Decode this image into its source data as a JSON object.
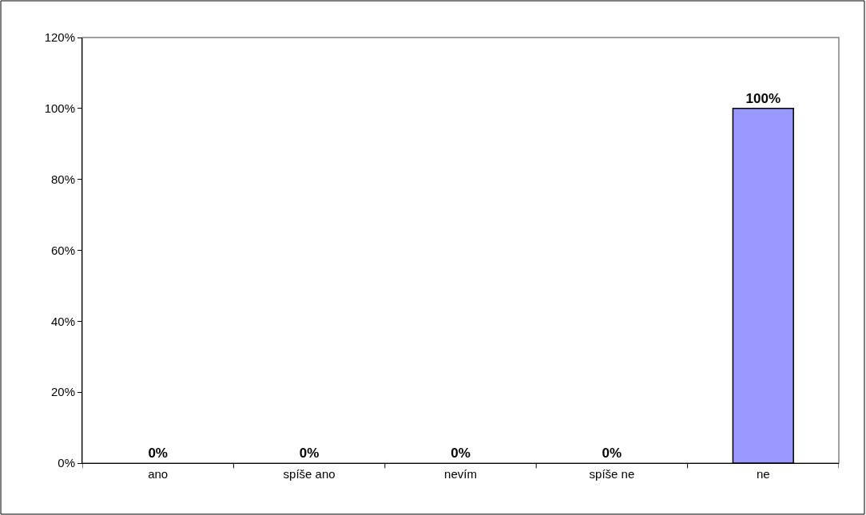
{
  "chart_data": {
    "type": "bar",
    "categories": [
      "ano",
      "spíše ano",
      "nevím",
      "spíše ne",
      "ne"
    ],
    "values": [
      0,
      0,
      0,
      0,
      100
    ],
    "value_labels": [
      "0%",
      "0%",
      "0%",
      "0%",
      "100%"
    ],
    "color": "#9999ff",
    "ylim": [
      0,
      120
    ],
    "yticks": [
      {
        "value": 0,
        "label": "0%"
      },
      {
        "value": 20,
        "label": "20%"
      },
      {
        "value": 40,
        "label": "40%"
      },
      {
        "value": 60,
        "label": "60%"
      },
      {
        "value": 80,
        "label": "80%"
      },
      {
        "value": 100,
        "label": "100%"
      },
      {
        "value": 120,
        "label": "120%"
      }
    ],
    "grid": false,
    "legend": false
  }
}
